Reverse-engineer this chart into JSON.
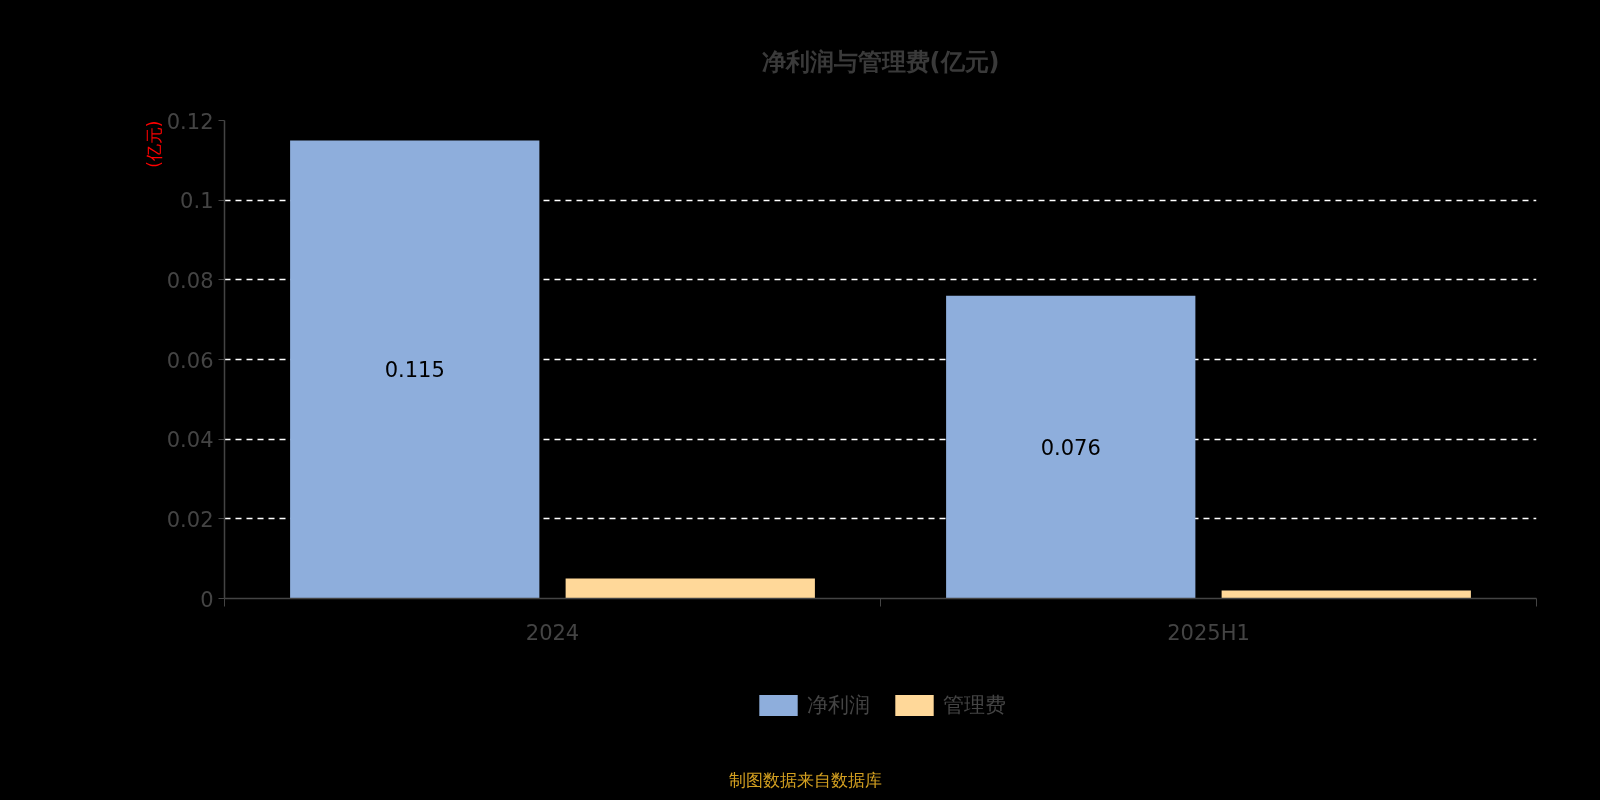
{
  "chart_data": {
    "type": "bar",
    "title": "净利润与管理费(亿元)",
    "ylabel": "(亿元)",
    "categories": [
      "2024",
      "2025H1"
    ],
    "series": [
      {
        "name": "净利润",
        "color": "#8eaedc",
        "values": [
          0.115,
          0.076
        ],
        "value_labels": [
          "0.115",
          "0.076"
        ]
      },
      {
        "name": "管理费",
        "color": "#ffd899",
        "values": [
          0.005,
          0.002
        ]
      }
    ],
    "ylim": [
      0,
      0.12
    ],
    "yticks": [
      0,
      0.02,
      0.04,
      0.06,
      0.08,
      0.1,
      0.12
    ],
    "grid": "y",
    "legend": "bottom",
    "annotations": [
      "制图数据来自数据库"
    ]
  }
}
